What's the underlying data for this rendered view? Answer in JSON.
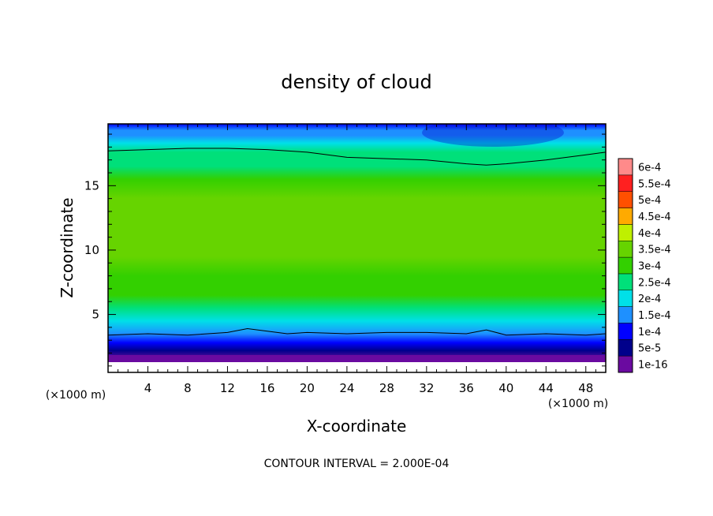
{
  "chart_data": {
    "type": "heatmap",
    "title": "density of cloud",
    "xlabel": "X-coordinate",
    "ylabel": "Z-coordinate",
    "x_unit": "(×1000 m)",
    "y_unit": "(×1000 m)",
    "xlim": [
      0,
      50
    ],
    "ylim": [
      0.5,
      19.8
    ],
    "x_ticks": [
      4,
      8,
      12,
      16,
      20,
      24,
      28,
      32,
      36,
      40,
      44,
      48
    ],
    "x_tick_labels": [
      "4",
      "8",
      "12",
      "16",
      "20",
      "24",
      "28",
      "32",
      "36",
      "40",
      "44",
      "48"
    ],
    "y_ticks": [
      5,
      10,
      15
    ],
    "y_tick_labels": [
      "5",
      "10",
      "15"
    ],
    "footer": "CONTOUR INTERVAL = 2.000E-04",
    "colorbar": {
      "labels": [
        "1e-16",
        "5e-5",
        "1e-4",
        "1.5e-4",
        "2e-4",
        "2.5e-4",
        "3e-4",
        "3.5e-4",
        "4e-4",
        "4.5e-4",
        "5e-4",
        "5.5e-4",
        "6e-4"
      ],
      "colors": [
        "#6a0aa0",
        "#00008b",
        "#0000ff",
        "#1e90ff",
        "#00e0e8",
        "#00e07a",
        "#33d000",
        "#66d400",
        "#bff000",
        "#ffaa00",
        "#ff5000",
        "#ff2020",
        "#ff8a8a"
      ]
    },
    "contours": [
      {
        "level": "2e-4",
        "x": [
          0,
          4,
          8,
          12,
          16,
          20,
          24,
          28,
          32,
          36,
          38,
          40,
          44,
          48,
          50
        ],
        "z": [
          17.7,
          17.8,
          17.9,
          17.9,
          17.8,
          17.6,
          17.2,
          17.1,
          17.0,
          16.7,
          16.6,
          16.7,
          17.0,
          17.4,
          17.6
        ]
      },
      {
        "level": "2e-4",
        "x": [
          0,
          4,
          8,
          12,
          14,
          16,
          18,
          20,
          24,
          28,
          32,
          36,
          38,
          40,
          44,
          48,
          50
        ],
        "z": [
          3.4,
          3.5,
          3.4,
          3.6,
          3.9,
          3.7,
          3.5,
          3.6,
          3.5,
          3.6,
          3.6,
          3.5,
          3.8,
          3.4,
          3.5,
          3.4,
          3.5
        ]
      }
    ],
    "bands": [
      {
        "z": 19.8,
        "level": 2
      },
      {
        "z": 19.3,
        "level": 3
      },
      {
        "z": 18.9,
        "level": 3
      },
      {
        "z": 18.3,
        "level": 4
      },
      {
        "z": 17.6,
        "level": 5
      },
      {
        "z": 16.5,
        "level": 5
      },
      {
        "z": 15.5,
        "level": 6
      },
      {
        "z": 14.0,
        "level": 7
      },
      {
        "z": 12.5,
        "level": 7
      },
      {
        "z": 11.0,
        "level": 7
      },
      {
        "z": 9.5,
        "level": 7
      },
      {
        "z": 8.0,
        "level": 6
      },
      {
        "z": 6.5,
        "level": 6
      },
      {
        "z": 5.5,
        "level": 5
      },
      {
        "z": 4.5,
        "level": 4
      },
      {
        "z": 3.5,
        "level": 3
      },
      {
        "z": 2.8,
        "level": 2
      },
      {
        "z": 2.2,
        "level": 1
      },
      {
        "z": 1.5,
        "level": 0
      },
      {
        "z": 1.1,
        "level": 0
      },
      {
        "z": 0.5,
        "level": -1
      }
    ]
  }
}
